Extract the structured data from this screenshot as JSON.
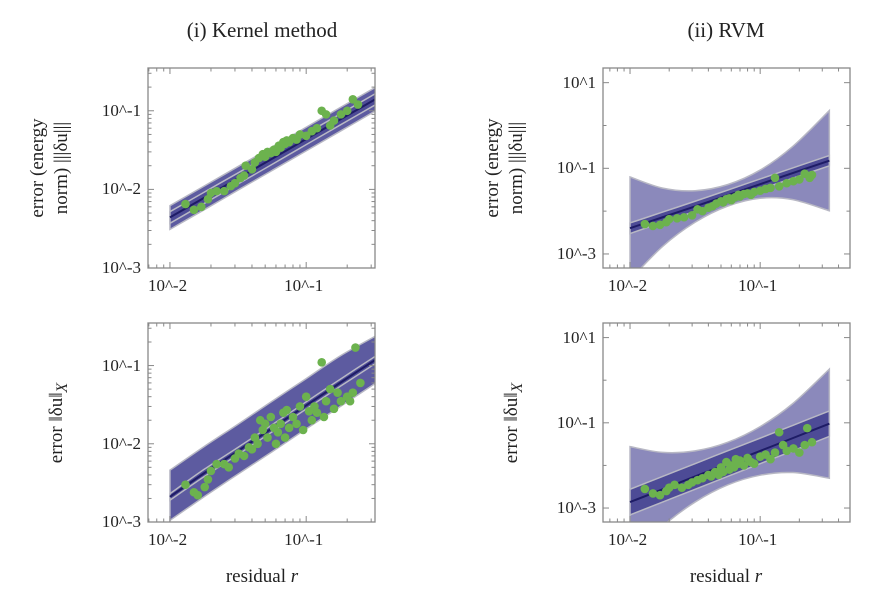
{
  "columns": [
    {
      "title": "(i) Kernel method"
    },
    {
      "title": "(ii) RVM"
    }
  ],
  "xlabel": "residual",
  "xlabel_var": "r",
  "colors": {
    "outer_band_kernel": "#5d5ba0",
    "outer_band_rvm": "#8b89bb",
    "inner_band": "#4d4b96",
    "fit_line": "#1e1c66",
    "points": "#6cb24e",
    "band_edge": "#b8b8c4"
  },
  "chart_data": [
    {
      "type": "scatter",
      "panel": "top-left",
      "ylabel_lines": [
        "error (energy",
        "norm) |||δu|||"
      ],
      "xscale": "log",
      "yscale": "log",
      "xlim": [
        0.0069,
        0.32
      ],
      "ylim": [
        0.001,
        0.35
      ],
      "xticks": [
        {
          "value": 0.01,
          "label": "10^-2"
        },
        {
          "value": 0.1,
          "label": "10^-1"
        }
      ],
      "yticks": [
        {
          "value": 0.001,
          "label": "10^-3"
        },
        {
          "value": 0.01,
          "label": "10^-2"
        },
        {
          "value": 0.1,
          "label": "10^-1"
        }
      ],
      "band_r": [
        0.01,
        0.0178,
        0.0316,
        0.0562,
        0.1,
        0.178,
        0.34
      ],
      "fit": [
        0.0044,
        0.0078,
        0.0138,
        0.0245,
        0.0437,
        0.0776,
        0.148
      ],
      "outer_band": {
        "lo": [
          0.0031,
          0.0055,
          0.0098,
          0.0174,
          0.0309,
          0.055,
          0.105
        ],
        "hi": [
          0.0062,
          0.011,
          0.0195,
          0.0346,
          0.0617,
          0.11,
          0.209
        ]
      },
      "inner_band": {
        "lo": [
          0.0037,
          0.0066,
          0.0117,
          0.0208,
          0.0371,
          0.066,
          0.126
        ],
        "hi": [
          0.0052,
          0.0092,
          0.0162,
          0.0288,
          0.0513,
          0.0912,
          0.174
        ]
      },
      "outer_style": "kernel",
      "points": [
        [
          0.013,
          0.0065
        ],
        [
          0.015,
          0.0055
        ],
        [
          0.017,
          0.006
        ],
        [
          0.019,
          0.0075
        ],
        [
          0.02,
          0.009
        ],
        [
          0.022,
          0.0095
        ],
        [
          0.025,
          0.0095
        ],
        [
          0.028,
          0.011
        ],
        [
          0.03,
          0.012
        ],
        [
          0.033,
          0.014
        ],
        [
          0.035,
          0.015
        ],
        [
          0.036,
          0.02
        ],
        [
          0.04,
          0.018
        ],
        [
          0.042,
          0.022
        ],
        [
          0.045,
          0.025
        ],
        [
          0.048,
          0.028
        ],
        [
          0.05,
          0.026
        ],
        [
          0.052,
          0.03
        ],
        [
          0.055,
          0.029
        ],
        [
          0.058,
          0.032
        ],
        [
          0.06,
          0.03
        ],
        [
          0.063,
          0.036
        ],
        [
          0.065,
          0.034
        ],
        [
          0.068,
          0.04
        ],
        [
          0.07,
          0.038
        ],
        [
          0.072,
          0.042
        ],
        [
          0.075,
          0.04
        ],
        [
          0.08,
          0.045
        ],
        [
          0.085,
          0.043
        ],
        [
          0.09,
          0.05
        ],
        [
          0.1,
          0.048
        ],
        [
          0.11,
          0.055
        ],
        [
          0.12,
          0.06
        ],
        [
          0.13,
          0.1
        ],
        [
          0.14,
          0.09
        ],
        [
          0.15,
          0.065
        ],
        [
          0.16,
          0.075
        ],
        [
          0.18,
          0.09
        ],
        [
          0.2,
          0.1
        ],
        [
          0.22,
          0.14
        ],
        [
          0.24,
          0.12
        ]
      ]
    },
    {
      "type": "scatter",
      "panel": "top-right",
      "ylabel_lines": [
        "error (energy",
        "norm) |||δu|||"
      ],
      "xscale": "log",
      "yscale": "log",
      "xlim": [
        0.0062,
        0.49
      ],
      "ylim": [
        0.00047,
        22
      ],
      "xticks": [
        {
          "value": 0.01,
          "label": "10^-2"
        },
        {
          "value": 0.1,
          "label": "10^-1"
        }
      ],
      "yticks": [
        {
          "value": 0.001,
          "label": "10^-3"
        },
        {
          "value": 0.1,
          "label": "10^-1"
        },
        {
          "value": 10,
          "label": "10^1"
        }
      ],
      "band_r": [
        0.01,
        0.0178,
        0.0316,
        0.0562,
        0.1,
        0.178,
        0.34
      ],
      "fit": [
        0.004,
        0.0072,
        0.0129,
        0.0234,
        0.0427,
        0.0776,
        0.151
      ],
      "outer_band": {
        "lo": [
          0.00025,
          0.0015,
          0.0055,
          0.0131,
          0.02,
          0.0186,
          0.0102
        ],
        "hi": [
          0.063,
          0.0345,
          0.03,
          0.0416,
          0.091,
          0.324,
          2.23
        ]
      },
      "inner_band": {
        "lo": [
          0.003,
          0.0055,
          0.0098,
          0.0177,
          0.0323,
          0.0588,
          0.114
        ],
        "hi": [
          0.0053,
          0.0095,
          0.017,
          0.0309,
          0.0564,
          0.102,
          0.199
        ]
      },
      "outer_style": "rvm",
      "points": [
        [
          0.013,
          0.005
        ],
        [
          0.015,
          0.0045
        ],
        [
          0.017,
          0.0048
        ],
        [
          0.019,
          0.0055
        ],
        [
          0.02,
          0.0065
        ],
        [
          0.023,
          0.0068
        ],
        [
          0.026,
          0.0072
        ],
        [
          0.03,
          0.008
        ],
        [
          0.033,
          0.011
        ],
        [
          0.036,
          0.01
        ],
        [
          0.04,
          0.012
        ],
        [
          0.043,
          0.013
        ],
        [
          0.046,
          0.015
        ],
        [
          0.05,
          0.017
        ],
        [
          0.052,
          0.016
        ],
        [
          0.055,
          0.019
        ],
        [
          0.058,
          0.02
        ],
        [
          0.06,
          0.018
        ],
        [
          0.064,
          0.021
        ],
        [
          0.068,
          0.024
        ],
        [
          0.07,
          0.022
        ],
        [
          0.075,
          0.025
        ],
        [
          0.08,
          0.026
        ],
        [
          0.085,
          0.024
        ],
        [
          0.09,
          0.028
        ],
        [
          0.1,
          0.03
        ],
        [
          0.11,
          0.033
        ],
        [
          0.12,
          0.035
        ],
        [
          0.13,
          0.06
        ],
        [
          0.14,
          0.038
        ],
        [
          0.16,
          0.045
        ],
        [
          0.18,
          0.05
        ],
        [
          0.2,
          0.055
        ],
        [
          0.22,
          0.075
        ],
        [
          0.24,
          0.06
        ],
        [
          0.25,
          0.07
        ]
      ]
    },
    {
      "type": "scatter",
      "panel": "bottom-left",
      "ylabel_main": "error ‖δu‖",
      "ylabel_sub": "X",
      "xscale": "log",
      "yscale": "log",
      "xlim": [
        0.0069,
        0.32
      ],
      "ylim": [
        0.001,
        0.35
      ],
      "xticks": [
        {
          "value": 0.01,
          "label": "10^-2"
        },
        {
          "value": 0.1,
          "label": "10^-1"
        }
      ],
      "yticks": [
        {
          "value": 0.001,
          "label": "10^-3"
        },
        {
          "value": 0.01,
          "label": "10^-2"
        },
        {
          "value": 0.1,
          "label": "10^-1"
        }
      ],
      "band_r": [
        0.01,
        0.0178,
        0.0316,
        0.0562,
        0.1,
        0.178,
        0.34
      ],
      "fit": [
        0.0021,
        0.0042,
        0.0081,
        0.0158,
        0.0309,
        0.0603,
        0.126
      ],
      "outer_band": {
        "lo": [
          0.00105,
          0.0021,
          0.0041,
          0.0079,
          0.0155,
          0.03,
          0.063
        ],
        "hi": [
          0.0046,
          0.0092,
          0.0178,
          0.035,
          0.068,
          0.133,
          0.25
        ]
      },
      "inner_band": {
        "lo": [
          0.0019,
          0.0038,
          0.0073,
          0.0142,
          0.0278,
          0.0543,
          0.113
        ],
        "hi": [
          0.0023,
          0.0047,
          0.009,
          0.0175,
          0.0343,
          0.0669,
          0.14
        ]
      },
      "outer_style": "kernel",
      "points": [
        [
          0.013,
          0.003
        ],
        [
          0.015,
          0.0024
        ],
        [
          0.016,
          0.0022
        ],
        [
          0.018,
          0.0028
        ],
        [
          0.019,
          0.0035
        ],
        [
          0.02,
          0.0045
        ],
        [
          0.022,
          0.0055
        ],
        [
          0.025,
          0.0055
        ],
        [
          0.027,
          0.005
        ],
        [
          0.03,
          0.0065
        ],
        [
          0.032,
          0.0075
        ],
        [
          0.035,
          0.007
        ],
        [
          0.038,
          0.009
        ],
        [
          0.04,
          0.0085
        ],
        [
          0.042,
          0.012
        ],
        [
          0.044,
          0.01
        ],
        [
          0.046,
          0.02
        ],
        [
          0.048,
          0.015
        ],
        [
          0.05,
          0.018
        ],
        [
          0.052,
          0.012
        ],
        [
          0.055,
          0.022
        ],
        [
          0.058,
          0.016
        ],
        [
          0.06,
          0.01
        ],
        [
          0.062,
          0.014
        ],
        [
          0.065,
          0.018
        ],
        [
          0.068,
          0.025
        ],
        [
          0.07,
          0.012
        ],
        [
          0.072,
          0.027
        ],
        [
          0.075,
          0.016
        ],
        [
          0.08,
          0.022
        ],
        [
          0.085,
          0.018
        ],
        [
          0.09,
          0.03
        ],
        [
          0.095,
          0.015
        ],
        [
          0.1,
          0.04
        ],
        [
          0.105,
          0.026
        ],
        [
          0.11,
          0.02
        ],
        [
          0.115,
          0.03
        ],
        [
          0.12,
          0.025
        ],
        [
          0.13,
          0.11
        ],
        [
          0.135,
          0.022
        ],
        [
          0.14,
          0.035
        ],
        [
          0.15,
          0.05
        ],
        [
          0.16,
          0.028
        ],
        [
          0.17,
          0.045
        ],
        [
          0.18,
          0.035
        ],
        [
          0.2,
          0.04
        ],
        [
          0.21,
          0.035
        ],
        [
          0.22,
          0.045
        ],
        [
          0.23,
          0.17
        ],
        [
          0.25,
          0.06
        ]
      ]
    },
    {
      "type": "scatter",
      "panel": "bottom-right",
      "ylabel_main": "error ‖δu‖",
      "ylabel_sub": "X",
      "xscale": "log",
      "yscale": "log",
      "xlim": [
        0.0062,
        0.49
      ],
      "ylim": [
        0.00047,
        22
      ],
      "xticks": [
        {
          "value": 0.01,
          "label": "10^-2"
        },
        {
          "value": 0.1,
          "label": "10^-1"
        }
      ],
      "yticks": [
        {
          "value": 0.001,
          "label": "10^-3"
        },
        {
          "value": 0.1,
          "label": "10^-1"
        },
        {
          "value": 10,
          "label": "10^1"
        }
      ],
      "band_r": [
        0.01,
        0.0178,
        0.0316,
        0.0562,
        0.1,
        0.178,
        0.34
      ],
      "fit": [
        0.00138,
        0.00275,
        0.0055,
        0.011,
        0.0219,
        0.0437,
        0.0955
      ],
      "outer_band": {
        "lo": [
          6.9e-05,
          0.000375,
          0.00138,
          0.00348,
          0.0059,
          0.0068,
          0.005
        ],
        "hi": [
          0.0276,
          0.0202,
          0.0219,
          0.0348,
          0.0815,
          0.282,
          1.82
        ]
      },
      "inner_band": {
        "lo": [
          0.00069,
          0.00138,
          0.00275,
          0.0055,
          0.011,
          0.0219,
          0.048
        ],
        "hi": [
          0.00276,
          0.0055,
          0.011,
          0.022,
          0.0437,
          0.087,
          0.19
        ]
      },
      "outer_style": "rvm",
      "points": [
        [
          0.013,
          0.0028
        ],
        [
          0.015,
          0.0022
        ],
        [
          0.017,
          0.002
        ],
        [
          0.019,
          0.0025
        ],
        [
          0.02,
          0.003
        ],
        [
          0.022,
          0.0035
        ],
        [
          0.025,
          0.003
        ],
        [
          0.028,
          0.0035
        ],
        [
          0.03,
          0.004
        ],
        [
          0.033,
          0.0045
        ],
        [
          0.036,
          0.005
        ],
        [
          0.04,
          0.006
        ],
        [
          0.042,
          0.0055
        ],
        [
          0.045,
          0.007
        ],
        [
          0.048,
          0.006
        ],
        [
          0.05,
          0.009
        ],
        [
          0.052,
          0.007
        ],
        [
          0.055,
          0.012
        ],
        [
          0.058,
          0.008
        ],
        [
          0.06,
          0.01
        ],
        [
          0.063,
          0.009
        ],
        [
          0.065,
          0.014
        ],
        [
          0.068,
          0.011
        ],
        [
          0.07,
          0.013
        ],
        [
          0.075,
          0.01
        ],
        [
          0.08,
          0.015
        ],
        [
          0.085,
          0.012
        ],
        [
          0.09,
          0.011
        ],
        [
          0.1,
          0.016
        ],
        [
          0.11,
          0.018
        ],
        [
          0.12,
          0.014
        ],
        [
          0.13,
          0.02
        ],
        [
          0.14,
          0.06
        ],
        [
          0.15,
          0.03
        ],
        [
          0.16,
          0.022
        ],
        [
          0.18,
          0.025
        ],
        [
          0.2,
          0.02
        ],
        [
          0.22,
          0.03
        ],
        [
          0.23,
          0.075
        ],
        [
          0.25,
          0.035
        ]
      ]
    }
  ]
}
